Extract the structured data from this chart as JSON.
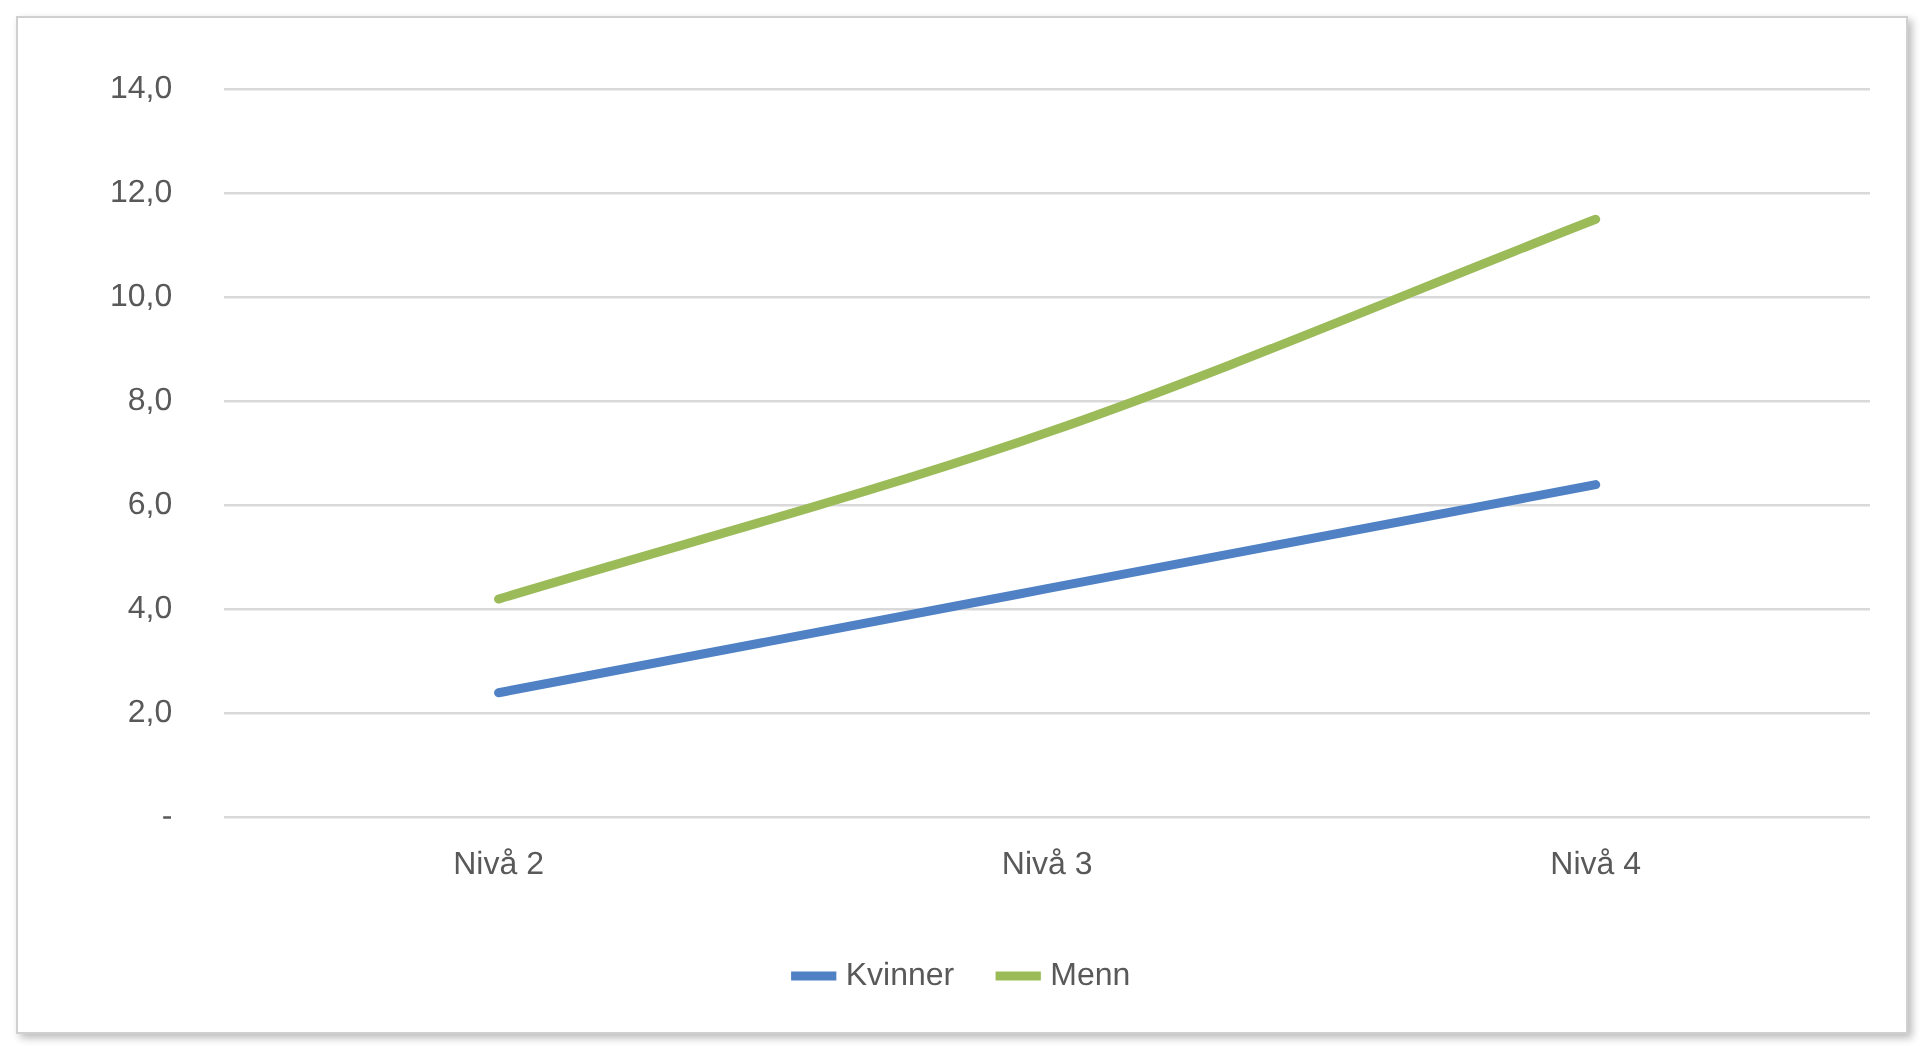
{
  "chart_data": {
    "type": "line",
    "categories": [
      "Nivå 2",
      "Nivå 3",
      "Nivå 4"
    ],
    "series": [
      {
        "name": "Kvinner",
        "color": "#4f81c4",
        "values": [
          2.4,
          4.4,
          6.4
        ]
      },
      {
        "name": "Menn",
        "color": "#9bbb59",
        "values": [
          4.2,
          7.4,
          11.5
        ]
      }
    ],
    "ylim": [
      0,
      14
    ],
    "yticks": [
      {
        "value": 0,
        "label": "-"
      },
      {
        "value": 2,
        "label": "2,0"
      },
      {
        "value": 4,
        "label": "4,0"
      },
      {
        "value": 6,
        "label": "6,0"
      },
      {
        "value": 8,
        "label": "8,0"
      },
      {
        "value": 10,
        "label": "10,0"
      },
      {
        "value": 12,
        "label": "12,0"
      },
      {
        "value": 14,
        "label": "14,0"
      }
    ],
    "grid": "y",
    "legend": "bottom",
    "marker": "none",
    "line_style": "solid"
  }
}
